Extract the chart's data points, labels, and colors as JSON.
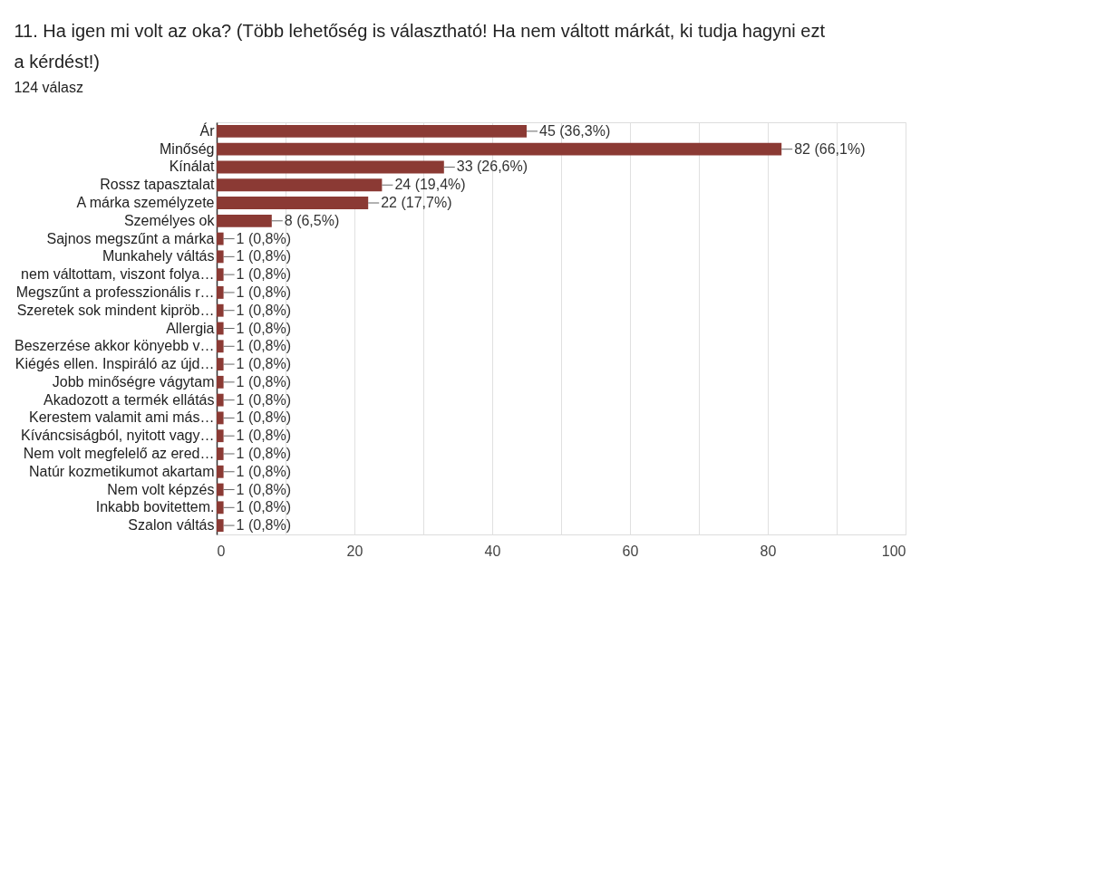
{
  "chart_data": {
    "type": "bar",
    "orientation": "horizontal",
    "title": [
      "11. Ha igen mi volt az oka? (Több lehetőség is választható! Ha nem váltott márkát, ki tudja hagyni ezt",
      "a kérdést!)"
    ],
    "subtitle": "124 válasz",
    "categories": [
      "Ár",
      "Minőség",
      "Kínálat",
      "Rossz tapasztalat",
      "A márka személyzete",
      "Személyes ok",
      "Sajnos megszűnt a márka",
      "Munkahely váltás",
      "nem váltottam, viszont folya…",
      "Megszűnt a professzionális r…",
      "Szeretek sok mindent kipröb…",
      "Allergia",
      "Beszerzése akkor könyebb v…",
      "Kiégés ellen. Inspiráló az újd…",
      "Jobb minőségre vágytam",
      "Akadozott a termék ellátás",
      "Kerestem valamit ami más…",
      "Kíváncsiságból, nyitott vagy…",
      "Nem volt megfelelő az ered…",
      "Natúr kozmetikumot akartam",
      "Nem volt képzés",
      "Inkabb bovitettem.",
      "Szalon váltás"
    ],
    "values": [
      45,
      82,
      33,
      24,
      22,
      8,
      1,
      1,
      1,
      1,
      1,
      1,
      1,
      1,
      1,
      1,
      1,
      1,
      1,
      1,
      1,
      1,
      1
    ],
    "value_labels": [
      "45 (36,3%)",
      "82 (66,1%)",
      "33 (26,6%)",
      "24 (19,4%)",
      "22 (17,7%)",
      "8 (6,5%)",
      "1 (0,8%)",
      "1 (0,8%)",
      "1 (0,8%)",
      "1 (0,8%)",
      "1 (0,8%)",
      "1 (0,8%)",
      "1 (0,8%)",
      "1 (0,8%)",
      "1 (0,8%)",
      "1 (0,8%)",
      "1 (0,8%)",
      "1 (0,8%)",
      "1 (0,8%)",
      "1 (0,8%)",
      "1 (0,8%)",
      "1 (0,8%)",
      "1 (0,8%)"
    ],
    "color": "#8b3a34",
    "xlim": [
      0,
      100
    ],
    "xticks": [
      0,
      {
        "value": 10,
        "label": null
      },
      20,
      {
        "value": 30,
        "label": null
      },
      40,
      {
        "value": 50,
        "label": null
      },
      60,
      {
        "value": 70,
        "label": null
      },
      80,
      {
        "value": 90,
        "label": null
      },
      100
    ],
    "grid": "x"
  }
}
